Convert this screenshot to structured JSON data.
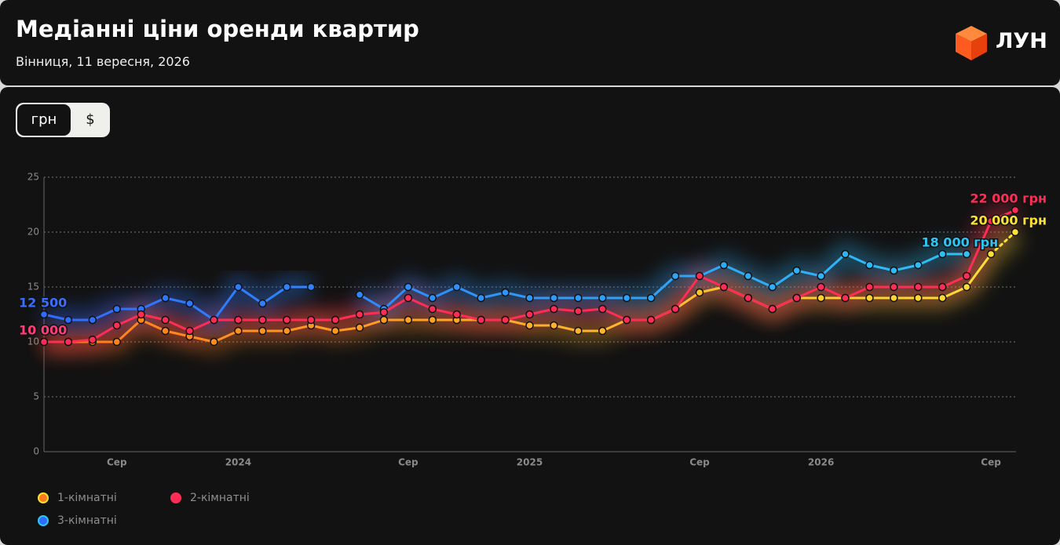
{
  "header": {
    "title": "Медіанні ціни оренди квартир",
    "subtitle": "Вінниця, 11 вересня, 2026",
    "logo": "ЛУН"
  },
  "currency_toggle": [
    "грн",
    "$"
  ],
  "chart_data": {
    "type": "line",
    "categories": [
      null,
      null,
      null,
      "Сер",
      null,
      null,
      null,
      null,
      "2024",
      null,
      null,
      null,
      null,
      null,
      null,
      "Сер",
      null,
      null,
      null,
      null,
      "2025",
      null,
      null,
      null,
      null,
      null,
      null,
      "Сер",
      null,
      null,
      null,
      null,
      "2026",
      null,
      null,
      null,
      null,
      null,
      null,
      "Сер",
      null
    ],
    "ylim": [
      0,
      25
    ],
    "yticks": [
      0,
      5,
      10,
      15,
      20,
      25
    ],
    "grid": true,
    "legend": "bottom-left",
    "series": [
      {
        "name": "1-кімнатні",
        "color": [
          "#ff7a1a",
          "#ffe135"
        ],
        "dashed_last": true,
        "values": [
          10,
          10,
          10,
          10,
          12,
          11,
          10.5,
          10,
          11,
          11,
          11,
          11.5,
          11,
          11.3,
          12,
          12,
          12,
          12,
          12,
          12,
          11.5,
          11.5,
          11,
          11,
          12,
          12,
          13,
          14.5,
          15,
          14,
          13,
          14,
          14,
          14,
          14,
          14,
          14,
          14,
          15,
          18,
          20
        ],
        "value_labels": [
          null,
          null,
          null,
          null,
          null,
          null,
          null,
          null,
          null,
          null,
          null,
          null,
          null,
          null,
          null,
          null,
          null,
          null,
          null,
          null,
          null,
          null,
          null,
          null,
          null,
          null,
          null,
          null,
          null,
          null,
          null,
          null,
          null,
          null,
          null,
          null,
          null,
          null,
          null,
          null,
          "20 000 грн"
        ]
      },
      {
        "name": "2-кімнатні",
        "color": "#ff2d55",
        "values": [
          10,
          10,
          10.2,
          11.5,
          12.5,
          12,
          11,
          12,
          12,
          12,
          12,
          12,
          12,
          12.5,
          12.7,
          14,
          13,
          12.5,
          12,
          12,
          12.5,
          13,
          12.8,
          13,
          12,
          12,
          13,
          16,
          15,
          14,
          13,
          14,
          15,
          14,
          15,
          15,
          15,
          15,
          16,
          21,
          22
        ],
        "value_labels": [
          "10 000",
          null,
          null,
          null,
          null,
          null,
          null,
          null,
          null,
          null,
          null,
          null,
          null,
          null,
          null,
          null,
          null,
          null,
          null,
          null,
          null,
          null,
          null,
          null,
          null,
          null,
          null,
          null,
          null,
          null,
          null,
          null,
          null,
          null,
          null,
          null,
          null,
          null,
          null,
          null,
          "22 000 грн"
        ]
      },
      {
        "name": "3-кімнатні",
        "color": [
          "#2f6bff",
          "#2ec5f5"
        ],
        "values": [
          12.5,
          12,
          12,
          13,
          13,
          14,
          13.5,
          12,
          15,
          13.5,
          15,
          15,
          null,
          14.3,
          13,
          15,
          14,
          15,
          14,
          14.5,
          14,
          14,
          14,
          14,
          14,
          14,
          16,
          16,
          17,
          16,
          15,
          16.5,
          16,
          18,
          17,
          16.5,
          17,
          18,
          18,
          null,
          null
        ],
        "value_labels": [
          "12 500",
          null,
          null,
          null,
          null,
          null,
          null,
          null,
          null,
          null,
          null,
          null,
          null,
          null,
          null,
          null,
          null,
          null,
          null,
          null,
          null,
          null,
          null,
          null,
          null,
          null,
          null,
          null,
          null,
          null,
          null,
          null,
          null,
          null,
          null,
          null,
          null,
          null,
          "18 000 грн",
          null,
          null
        ]
      }
    ]
  }
}
